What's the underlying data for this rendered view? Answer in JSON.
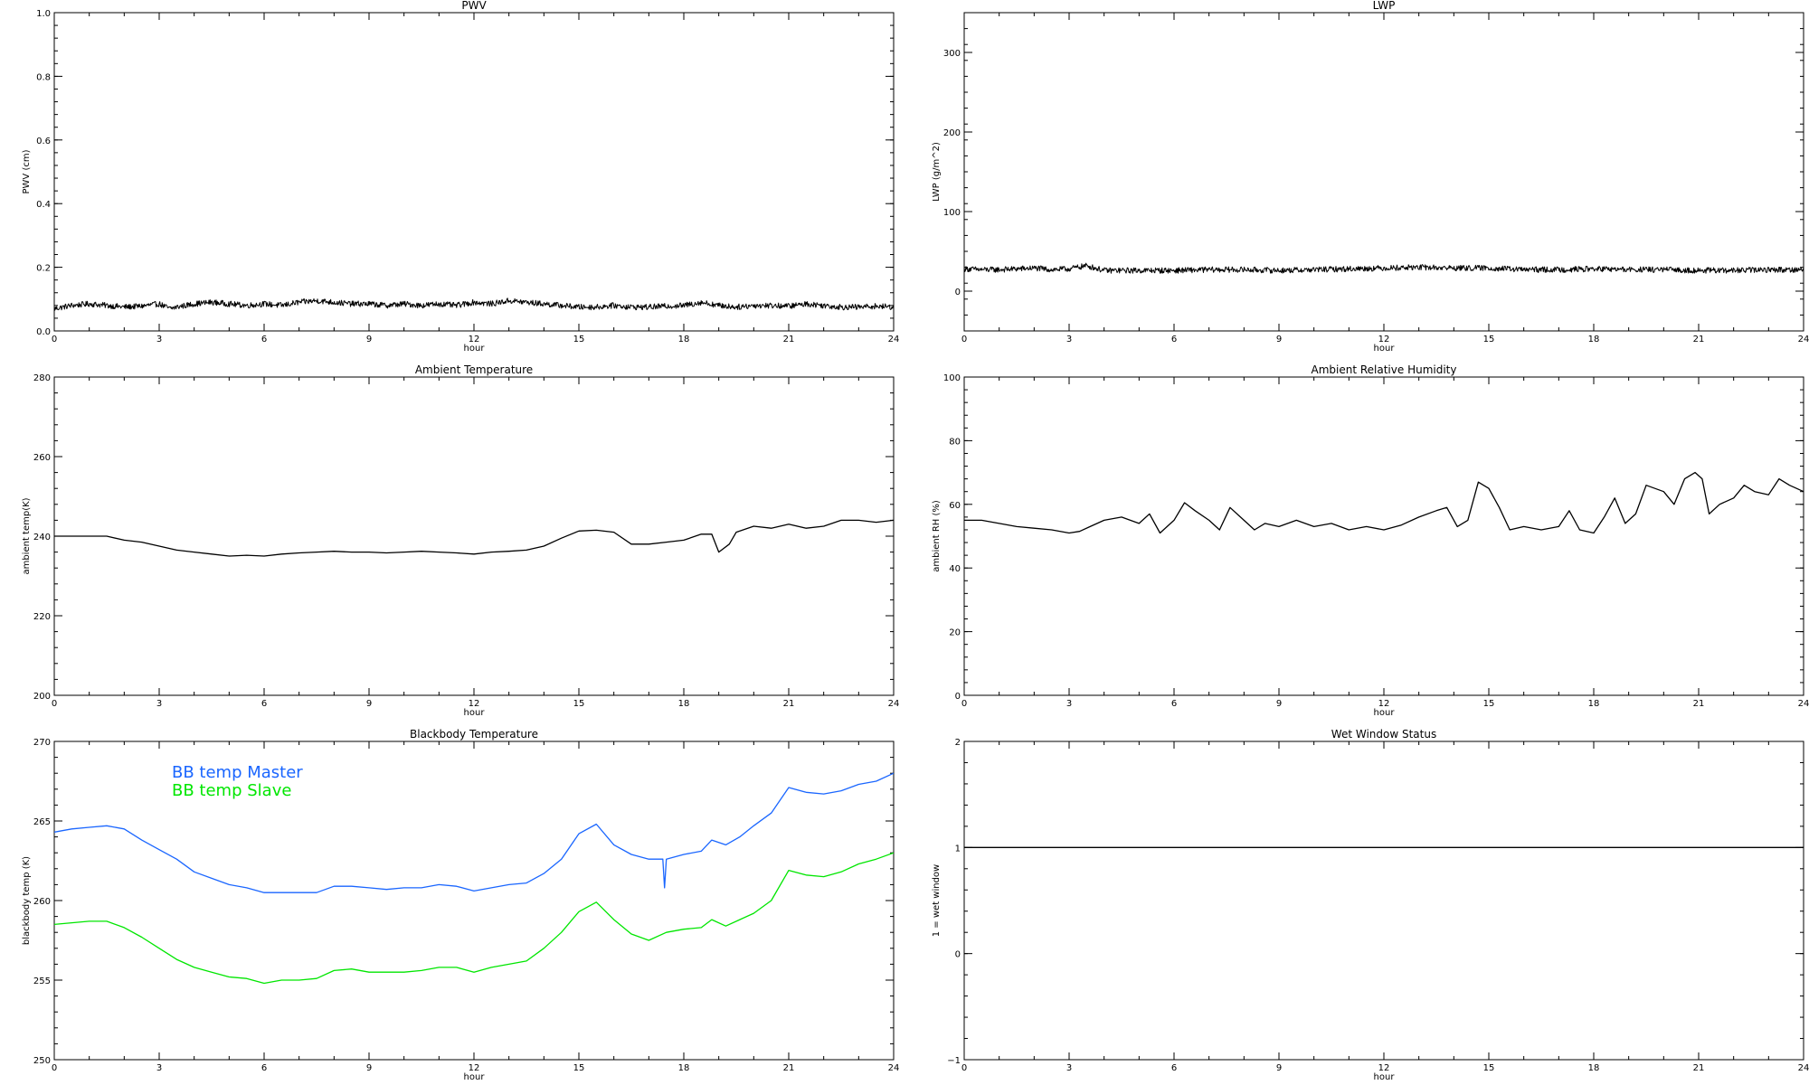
{
  "chart_data": [
    {
      "id": "pwv",
      "type": "line",
      "title": "PWV",
      "xlabel": "hour",
      "ylabel": "PWV (cm)",
      "xlim": [
        0,
        24
      ],
      "ylim": [
        0,
        1.0
      ],
      "xticks": [
        0,
        3,
        6,
        9,
        12,
        15,
        18,
        21,
        24
      ],
      "xtick_labels": [
        "0",
        "3",
        "6",
        "9",
        "12",
        "15",
        "18",
        "21",
        "24"
      ],
      "yticks": [
        0,
        0.2,
        0.4,
        0.6,
        0.8,
        1.0
      ],
      "ytick_labels": [
        "0.0",
        "0.2",
        "0.4",
        "0.6",
        "0.8",
        "1.0"
      ],
      "noisy": true,
      "series": [
        {
          "color": "#000000",
          "x": [
            0,
            0.5,
            1,
            1.5,
            2,
            2.5,
            3,
            3.3,
            3.5,
            4,
            4.5,
            5,
            5.5,
            6,
            6.5,
            7,
            7.5,
            8,
            8.5,
            9,
            9.5,
            10,
            10.5,
            11,
            11.5,
            12,
            12.5,
            13,
            13.5,
            14,
            14.5,
            15,
            15.5,
            16,
            16.5,
            17,
            17.5,
            18,
            18.5,
            19,
            19.5,
            20,
            20.5,
            21,
            21.5,
            22,
            22.5,
            23,
            23.5,
            24
          ],
          "y": [
            0.07,
            0.08,
            0.085,
            0.08,
            0.075,
            0.078,
            0.085,
            0.07,
            0.075,
            0.085,
            0.09,
            0.085,
            0.08,
            0.085,
            0.08,
            0.09,
            0.095,
            0.09,
            0.085,
            0.085,
            0.08,
            0.085,
            0.08,
            0.085,
            0.08,
            0.09,
            0.085,
            0.095,
            0.09,
            0.085,
            0.08,
            0.075,
            0.075,
            0.08,
            0.075,
            0.075,
            0.078,
            0.08,
            0.09,
            0.08,
            0.075,
            0.08,
            0.08,
            0.078,
            0.085,
            0.08,
            0.075,
            0.075,
            0.078,
            0.075
          ]
        }
      ]
    },
    {
      "id": "lwp",
      "type": "line",
      "title": "LWP",
      "xlabel": "hour",
      "ylabel": "LWP (g/m^2)",
      "xlim": [
        0,
        24
      ],
      "ylim": [
        -50,
        350
      ],
      "xticks": [
        0,
        3,
        6,
        9,
        12,
        15,
        18,
        21,
        24
      ],
      "xtick_labels": [
        "0",
        "3",
        "6",
        "9",
        "12",
        "15",
        "18",
        "21",
        "24"
      ],
      "yticks": [
        0,
        100,
        200,
        300
      ],
      "ytick_labels": [
        "0",
        "100",
        "200",
        "300"
      ],
      "noisy": true,
      "series": [
        {
          "color": "#000000",
          "x": [
            0,
            0.5,
            1,
            1.5,
            2,
            2.5,
            3,
            3.5,
            4,
            5,
            6,
            7,
            8,
            9,
            10,
            11,
            12,
            13,
            14,
            15,
            16,
            17,
            18,
            19,
            20,
            21,
            22,
            23,
            24
          ],
          "y": [
            28,
            27,
            27,
            28,
            29,
            27,
            28,
            32,
            26,
            26,
            26,
            27,
            27,
            26,
            27,
            28,
            29,
            30,
            29,
            29,
            27,
            27,
            28,
            27,
            27,
            26,
            26,
            27,
            27
          ]
        }
      ]
    },
    {
      "id": "ambient-temp",
      "type": "line",
      "title": "Ambient Temperature",
      "xlabel": "hour",
      "ylabel": "ambient temp(K)",
      "xlim": [
        0,
        24
      ],
      "ylim": [
        200,
        280
      ],
      "xticks": [
        0,
        3,
        6,
        9,
        12,
        15,
        18,
        21,
        24
      ],
      "xtick_labels": [
        "0",
        "3",
        "6",
        "9",
        "12",
        "15",
        "18",
        "21",
        "24"
      ],
      "yticks": [
        200,
        220,
        240,
        260,
        280
      ],
      "ytick_labels": [
        "200",
        "220",
        "240",
        "260",
        "280"
      ],
      "noisy": false,
      "series": [
        {
          "color": "#000000",
          "x": [
            0,
            0.5,
            1,
            1.5,
            2,
            2.5,
            3,
            3.5,
            4,
            4.5,
            5,
            5.5,
            6,
            6.5,
            7,
            7.5,
            8,
            8.5,
            9,
            9.5,
            10,
            10.5,
            11,
            11.5,
            12,
            12.5,
            13,
            13.5,
            14,
            14.5,
            15,
            15.5,
            16,
            16.5,
            17,
            17.5,
            18,
            18.5,
            18.8,
            19,
            19.3,
            19.5,
            20,
            20.5,
            21,
            21.5,
            22,
            22.5,
            23,
            23.5,
            24
          ],
          "y": [
            240,
            240,
            240,
            240,
            239,
            238.5,
            237.5,
            236.5,
            236,
            235.5,
            235,
            235.2,
            235,
            235.5,
            235.8,
            236,
            236.2,
            236,
            236,
            235.8,
            236,
            236.2,
            236,
            235.8,
            235.5,
            236,
            236.2,
            236.5,
            237.5,
            239.5,
            241.3,
            241.5,
            241,
            238,
            238,
            238.5,
            239,
            240.5,
            240.5,
            236,
            238,
            241,
            242.5,
            242,
            243,
            242,
            242.5,
            244,
            244,
            243.5,
            244
          ]
        }
      ]
    },
    {
      "id": "ambient-rh",
      "type": "line",
      "title": "Ambient Relative Humidity",
      "xlabel": "hour",
      "ylabel": "ambient RH (%)",
      "xlim": [
        0,
        24
      ],
      "ylim": [
        0,
        100
      ],
      "xticks": [
        0,
        3,
        6,
        9,
        12,
        15,
        18,
        21,
        24
      ],
      "xtick_labels": [
        "0",
        "3",
        "6",
        "9",
        "12",
        "15",
        "18",
        "21",
        "24"
      ],
      "yticks": [
        0,
        20,
        40,
        60,
        80,
        100
      ],
      "ytick_labels": [
        "0",
        "20",
        "40",
        "60",
        "80",
        "100"
      ],
      "noisy": false,
      "series": [
        {
          "color": "#000000",
          "x": [
            0,
            0.5,
            1,
            1.5,
            2,
            2.5,
            3,
            3.3,
            3.6,
            4,
            4.5,
            5,
            5.3,
            5.6,
            6,
            6.3,
            6.6,
            7,
            7.3,
            7.6,
            8,
            8.3,
            8.6,
            9,
            9.5,
            10,
            10.5,
            11,
            11.5,
            12,
            12.5,
            13,
            13.5,
            13.8,
            14.1,
            14.4,
            14.7,
            15,
            15.3,
            15.6,
            16,
            16.5,
            17,
            17.3,
            17.6,
            18,
            18.3,
            18.6,
            18.9,
            19.2,
            19.5,
            20,
            20.3,
            20.6,
            20.9,
            21.1,
            21.3,
            21.6,
            22,
            22.3,
            22.6,
            23,
            23.3,
            23.6,
            24
          ],
          "y": [
            55,
            55,
            54,
            53,
            52.5,
            52,
            51,
            51.5,
            53,
            55,
            56,
            54,
            57,
            51,
            55,
            60.5,
            58,
            55,
            52,
            59,
            55,
            52,
            54,
            53,
            55,
            53,
            54,
            52,
            53,
            52,
            53.5,
            56,
            58,
            59,
            53,
            55,
            67,
            65,
            59,
            52,
            53,
            52,
            53,
            58,
            52,
            51,
            56,
            62,
            54,
            57,
            66,
            64,
            60,
            68,
            70,
            68,
            57,
            60,
            62,
            66,
            64,
            63,
            68,
            66,
            64
          ]
        }
      ]
    },
    {
      "id": "blackbody-temp",
      "type": "line",
      "title": "Blackbody Temperature",
      "xlabel": "hour",
      "ylabel": "blackbody temp (K)",
      "xlim": [
        0,
        24
      ],
      "ylim": [
        250,
        270
      ],
      "xticks": [
        0,
        3,
        6,
        9,
        12,
        15,
        18,
        21,
        24
      ],
      "xtick_labels": [
        "0",
        "3",
        "6",
        "9",
        "12",
        "15",
        "18",
        "21",
        "24"
      ],
      "yticks": [
        250,
        255,
        260,
        265,
        270
      ],
      "ytick_labels": [
        "250",
        "255",
        "260",
        "265",
        "270"
      ],
      "noisy": false,
      "legend": [
        "BB temp Master",
        "BB temp Slave"
      ],
      "series": [
        {
          "name": "BB temp Master",
          "color": "#1a66ff",
          "x": [
            0,
            0.5,
            1,
            1.5,
            2,
            2.5,
            3,
            3.5,
            4,
            4.5,
            5,
            5.5,
            6,
            6.5,
            7,
            7.5,
            8,
            8.5,
            9,
            9.5,
            10,
            10.5,
            11,
            11.5,
            12,
            12.5,
            13,
            13.5,
            14,
            14.5,
            15,
            15.5,
            16,
            16.5,
            17,
            17.4,
            17.45,
            17.5,
            18,
            18.5,
            18.8,
            19.2,
            19.6,
            20,
            20.5,
            21,
            21.5,
            22,
            22.5,
            23,
            23.5,
            24
          ],
          "y": [
            264.3,
            264.5,
            264.6,
            264.7,
            264.5,
            263.8,
            263.2,
            262.6,
            261.8,
            261.4,
            261,
            260.8,
            260.5,
            260.5,
            260.5,
            260.5,
            260.9,
            260.9,
            260.8,
            260.7,
            260.8,
            260.8,
            261,
            260.9,
            260.6,
            260.8,
            261,
            261.1,
            261.7,
            262.6,
            264.2,
            264.8,
            263.5,
            262.9,
            262.6,
            262.6,
            260.8,
            262.6,
            262.9,
            263.1,
            263.8,
            263.5,
            264,
            264.7,
            265.5,
            267.1,
            266.8,
            266.7,
            266.9,
            267.3,
            267.5,
            268
          ]
        },
        {
          "name": "BB temp Slave",
          "color": "#00e600",
          "x": [
            0,
            0.5,
            1,
            1.5,
            2,
            2.5,
            3,
            3.5,
            4,
            4.5,
            5,
            5.5,
            6,
            6.5,
            7,
            7.5,
            8,
            8.5,
            9,
            9.5,
            10,
            10.5,
            11,
            11.5,
            12,
            12.5,
            13,
            13.5,
            14,
            14.5,
            15,
            15.5,
            16,
            16.5,
            17,
            17.5,
            18,
            18.5,
            18.8,
            19.2,
            19.6,
            20,
            20.5,
            21,
            21.5,
            22,
            22.5,
            23,
            23.5,
            24
          ],
          "y": [
            258.5,
            258.6,
            258.7,
            258.7,
            258.3,
            257.7,
            257,
            256.3,
            255.8,
            255.5,
            255.2,
            255.1,
            254.8,
            255,
            255,
            255.1,
            255.6,
            255.7,
            255.5,
            255.5,
            255.5,
            255.6,
            255.8,
            255.8,
            255.5,
            255.8,
            256,
            256.2,
            257,
            258,
            259.3,
            259.9,
            258.8,
            257.9,
            257.5,
            258,
            258.2,
            258.3,
            258.8,
            258.4,
            258.8,
            259.2,
            260,
            261.9,
            261.6,
            261.5,
            261.8,
            262.3,
            262.6,
            263
          ]
        }
      ]
    },
    {
      "id": "wet-window",
      "type": "line",
      "title": "Wet Window Status",
      "xlabel": "hour",
      "ylabel": "1 = wet window",
      "xlim": [
        0,
        24
      ],
      "ylim": [
        -1,
        2
      ],
      "xticks": [
        0,
        3,
        6,
        9,
        12,
        15,
        18,
        21,
        24
      ],
      "xtick_labels": [
        "0",
        "3",
        "6",
        "9",
        "12",
        "15",
        "18",
        "21",
        "24"
      ],
      "yticks": [
        -1,
        0,
        1,
        2
      ],
      "ytick_labels": [
        "−1",
        "0",
        "1",
        "2"
      ],
      "noisy": false,
      "series": [
        {
          "color": "#000000",
          "x": [
            0,
            24
          ],
          "y": [
            1,
            1
          ]
        }
      ]
    }
  ]
}
